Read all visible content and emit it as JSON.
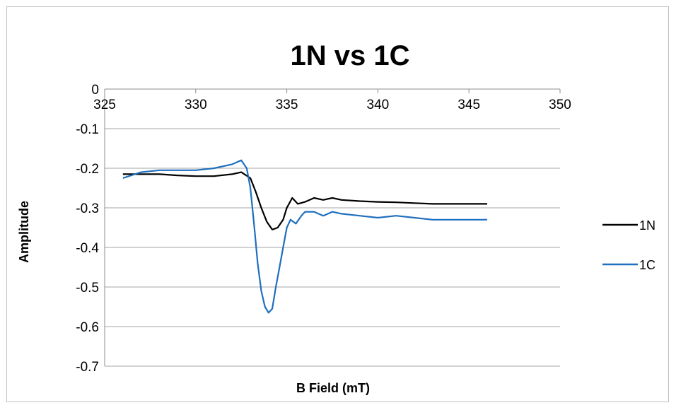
{
  "chart_data": {
    "type": "line",
    "title": "1N vs 1C",
    "xlabel": "B Field (mT)",
    "ylabel": "Amplitude",
    "xlim": [
      325,
      350
    ],
    "ylim": [
      -0.7,
      0
    ],
    "x_ticks": [
      "325",
      "330",
      "335",
      "340",
      "345",
      "350"
    ],
    "y_ticks": [
      "0",
      "-0.1",
      "-0.2",
      "-0.3",
      "-0.4",
      "-0.5",
      "-0.6",
      "-0.7"
    ],
    "grid": "horizontal",
    "legend_position": "right",
    "colors": {
      "1N": "#000000",
      "1C": "#1f6fbf"
    },
    "series": [
      {
        "name": "1N",
        "color": "#000000",
        "x": [
          326.0,
          327.0,
          328.0,
          329.0,
          330.0,
          331.0,
          332.0,
          332.5,
          333.0,
          333.3,
          333.6,
          333.9,
          334.2,
          334.5,
          334.8,
          335.0,
          335.3,
          335.6,
          336.0,
          336.5,
          337.0,
          337.5,
          338.0,
          339.0,
          340.0,
          341.0,
          342.0,
          343.0,
          344.0,
          345.0,
          346.0
        ],
        "y": [
          -0.215,
          -0.215,
          -0.215,
          -0.218,
          -0.22,
          -0.22,
          -0.215,
          -0.21,
          -0.225,
          -0.26,
          -0.3,
          -0.335,
          -0.355,
          -0.35,
          -0.33,
          -0.3,
          -0.275,
          -0.29,
          -0.285,
          -0.275,
          -0.28,
          -0.275,
          -0.28,
          -0.283,
          -0.285,
          -0.286,
          -0.288,
          -0.29,
          -0.29,
          -0.29,
          -0.29
        ]
      },
      {
        "name": "1C",
        "color": "#1f6fbf",
        "x": [
          326.0,
          327.0,
          328.0,
          329.0,
          330.0,
          331.0,
          332.0,
          332.5,
          332.8,
          333.0,
          333.2,
          333.4,
          333.6,
          333.8,
          334.0,
          334.2,
          334.4,
          334.6,
          334.8,
          335.0,
          335.2,
          335.5,
          335.8,
          336.0,
          336.5,
          337.0,
          337.5,
          338.0,
          339.0,
          340.0,
          341.0,
          342.0,
          343.0,
          344.0,
          345.0,
          346.0
        ],
        "y": [
          -0.225,
          -0.21,
          -0.205,
          -0.205,
          -0.205,
          -0.2,
          -0.19,
          -0.18,
          -0.2,
          -0.25,
          -0.34,
          -0.44,
          -0.51,
          -0.55,
          -0.565,
          -0.555,
          -0.5,
          -0.45,
          -0.4,
          -0.35,
          -0.33,
          -0.34,
          -0.32,
          -0.31,
          -0.31,
          -0.32,
          -0.31,
          -0.315,
          -0.32,
          -0.325,
          -0.32,
          -0.325,
          -0.33,
          -0.33,
          -0.33,
          -0.33
        ]
      }
    ]
  }
}
